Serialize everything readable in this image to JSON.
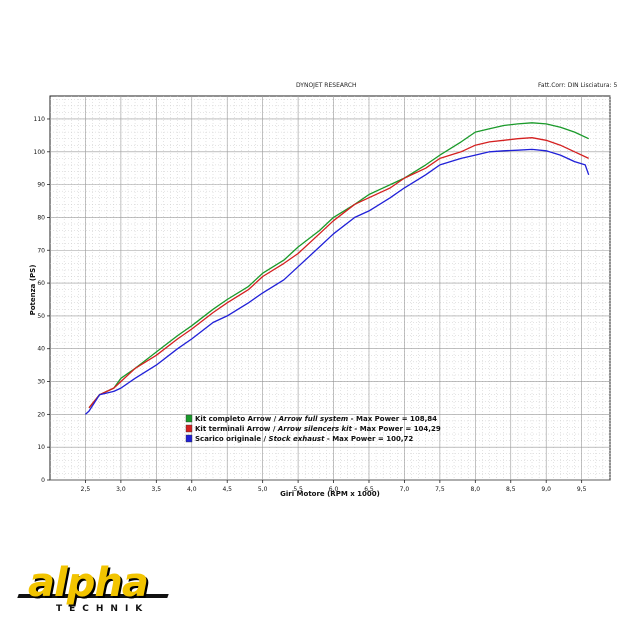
{
  "header": {
    "center_title": "DYNOJET RESEARCH",
    "right_text": "Fatt.Corr: DIN  Lisciatura: 5"
  },
  "logo": {
    "text_top": "alpha",
    "text_bottom": "TECHNIK"
  },
  "chart_data": {
    "type": "line",
    "xlabel": "Giri Motore (RPM x 1000)",
    "ylabel": "Potenza (PS)",
    "xlim": [
      2.0,
      9.9
    ],
    "ylim": [
      0,
      117
    ],
    "x_ticks": [
      "2,5",
      "3,0",
      "3,5",
      "4,0",
      "4,5",
      "5,0",
      "5,5",
      "6,0",
      "6,5",
      "7,0",
      "7,5",
      "8,0",
      "8,5",
      "9,0",
      "9,5"
    ],
    "x_tick_values": [
      2.5,
      3.0,
      3.5,
      4.0,
      4.5,
      5.0,
      5.5,
      6.0,
      6.5,
      7.0,
      7.5,
      8.0,
      8.5,
      9.0,
      9.5
    ],
    "y_ticks": [
      "0",
      "10",
      "20",
      "30",
      "40",
      "50",
      "60",
      "70",
      "80",
      "90",
      "100",
      "110"
    ],
    "y_tick_values": [
      0,
      10,
      20,
      30,
      40,
      50,
      60,
      70,
      80,
      90,
      100,
      110
    ],
    "grid": true,
    "legend_position": "bottom-center",
    "series": [
      {
        "name": "Kit completo Arrow / Arrow full system - Max Power = 108,84",
        "legend_plain": "Kit completo Arrow / ",
        "legend_italic": "Arrow full system",
        "legend_tail": " - Max Power = 108,84",
        "color": "#1a9a2a",
        "x": [
          2.55,
          2.7,
          2.9,
          3.0,
          3.2,
          3.5,
          3.8,
          4.0,
          4.3,
          4.5,
          4.8,
          5.0,
          5.3,
          5.5,
          5.8,
          6.0,
          6.3,
          6.5,
          6.8,
          7.0,
          7.3,
          7.5,
          7.8,
          8.0,
          8.2,
          8.4,
          8.6,
          8.8,
          9.0,
          9.2,
          9.4,
          9.6
        ],
        "y": [
          22,
          26,
          28,
          31,
          34,
          39,
          44,
          47,
          52,
          55,
          59,
          63,
          67,
          71,
          76,
          80,
          84,
          87,
          90,
          92,
          96,
          99,
          103,
          106,
          107,
          108,
          108.5,
          108.84,
          108.5,
          107.5,
          106,
          104
        ]
      },
      {
        "name": "Kit terminali Arrow / Arrow silencers kit - Max Power = 104,29",
        "legend_plain": "Kit terminali Arrow / ",
        "legend_italic": "Arrow silencers kit",
        "legend_tail": " - Max Power = 104,29",
        "color": "#d42020",
        "x": [
          2.55,
          2.7,
          2.9,
          3.0,
          3.2,
          3.5,
          3.8,
          4.0,
          4.3,
          4.5,
          4.8,
          5.0,
          5.3,
          5.5,
          5.8,
          6.0,
          6.3,
          6.5,
          6.8,
          7.0,
          7.3,
          7.5,
          7.8,
          8.0,
          8.2,
          8.4,
          8.6,
          8.8,
          9.0,
          9.2,
          9.4,
          9.6
        ],
        "y": [
          22,
          26,
          28,
          30,
          34,
          38,
          43,
          46,
          51,
          54,
          58,
          62,
          66,
          69,
          75,
          79,
          84,
          86,
          89,
          92,
          95,
          98,
          100,
          102,
          103,
          103.5,
          104,
          104.29,
          103.5,
          102,
          100,
          98
        ]
      },
      {
        "name": "Scarico originale / Stock exhaust - Max Power = 100,72",
        "legend_plain": "Scarico originale / ",
        "legend_italic": "Stock exhaust",
        "legend_tail": " - Max Power = 100,72",
        "color": "#2020d8",
        "x": [
          2.5,
          2.55,
          2.7,
          2.9,
          3.0,
          3.2,
          3.5,
          3.8,
          4.0,
          4.3,
          4.5,
          4.8,
          5.0,
          5.3,
          5.5,
          5.8,
          6.0,
          6.3,
          6.5,
          6.8,
          7.0,
          7.3,
          7.5,
          7.8,
          8.0,
          8.2,
          8.4,
          8.6,
          8.8,
          9.0,
          9.2,
          9.4,
          9.55,
          9.6
        ],
        "y": [
          20,
          21,
          26,
          27,
          28,
          31,
          35,
          40,
          43,
          48,
          50,
          54,
          57,
          61,
          65,
          71,
          75,
          80,
          82,
          86,
          89,
          93,
          96,
          98,
          99,
          100,
          100.3,
          100.5,
          100.72,
          100.3,
          99,
          97,
          96,
          93
        ]
      }
    ]
  }
}
